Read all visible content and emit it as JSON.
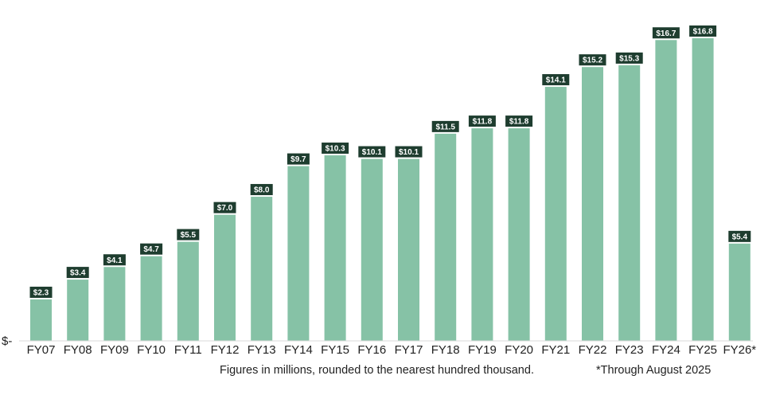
{
  "chart_data": {
    "type": "bar",
    "categories": [
      "FY07",
      "FY08",
      "FY09",
      "FY10",
      "FY11",
      "FY12",
      "FY13",
      "FY14",
      "FY15",
      "FY16",
      "FY17",
      "FY18",
      "FY19",
      "FY20",
      "FY21",
      "FY22",
      "FY23",
      "FY24",
      "FY25",
      "FY26*"
    ],
    "values": [
      2.3,
      3.4,
      4.1,
      4.7,
      5.5,
      7.0,
      8.0,
      9.7,
      10.3,
      10.1,
      10.1,
      11.5,
      11.8,
      11.8,
      14.1,
      15.2,
      15.3,
      16.7,
      16.8,
      5.4
    ],
    "data_labels": [
      "$2.3",
      "$3.4",
      "$4.1",
      "$4.7",
      "$5.5",
      "$7.0",
      "$8.0",
      "$9.7",
      "$10.3",
      "$10.1",
      "$10.1",
      "$11.5",
      "$11.8",
      "$11.8",
      "$14.1",
      "$15.2",
      "$15.3",
      "$16.7",
      "$16.8",
      "$5.4"
    ],
    "y_tick_label": "$-",
    "ylim": [
      0,
      18
    ],
    "grid": false,
    "legend": "none",
    "colors": {
      "bar": "#86c2a6",
      "label_bg": "#1e3d2f",
      "label_text": "#ffffff"
    }
  },
  "footnote": {
    "units_note": "Figures in millions, rounded to the nearest hundred thousand.",
    "through_note": "*Through August 2025"
  }
}
